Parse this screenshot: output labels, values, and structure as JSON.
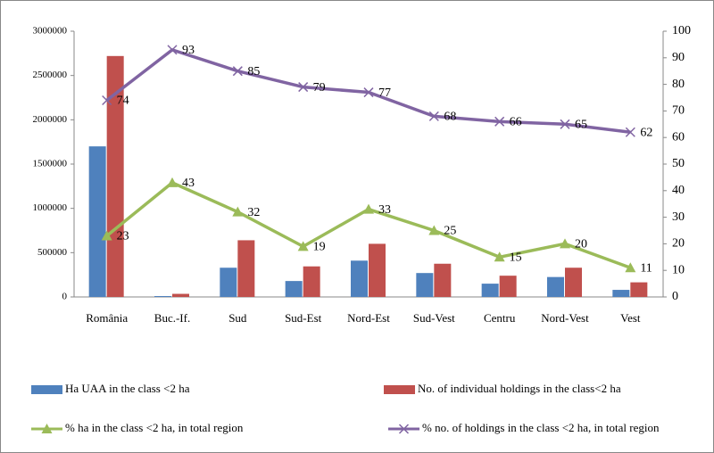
{
  "chart_data": {
    "type": "bar",
    "categories": [
      "România",
      "Buc.-If.",
      "Sud",
      "Sud-Est",
      "Nord-Est",
      "Sud-Vest",
      "Centru",
      "Nord-Vest",
      "Vest"
    ],
    "series": [
      {
        "name": "Ha UAA in the class <2 ha",
        "type": "bar",
        "color": "#4f81bd",
        "values": [
          1700000,
          10000,
          330000,
          180000,
          410000,
          270000,
          150000,
          225000,
          80000
        ]
      },
      {
        "name": "No. of individual holdings in the class<2 ha",
        "type": "bar",
        "color": "#c0504d",
        "values": [
          2720000,
          35000,
          640000,
          345000,
          600000,
          375000,
          240000,
          330000,
          165000
        ]
      },
      {
        "name": "% ha in the class <2 ha, in total region",
        "type": "line",
        "axis": "y2",
        "marker": "triangle",
        "color": "#9bbb59",
        "values": [
          23,
          43,
          32,
          19,
          33,
          25,
          15,
          20,
          11
        ]
      },
      {
        "name": "% no. of holdings in the class <2 ha, in total region",
        "type": "line",
        "axis": "y2",
        "marker": "x",
        "color": "#8064a2",
        "values": [
          74,
          93,
          85,
          79,
          77,
          68,
          66,
          65,
          62
        ]
      }
    ],
    "ylim": [
      0,
      3000000
    ],
    "yticks": [
      0,
      500000,
      1000000,
      1500000,
      2000000,
      2500000,
      3000000
    ],
    "y2lim": [
      0,
      100
    ],
    "y2ticks": [
      0,
      10,
      20,
      30,
      40,
      50,
      60,
      70,
      80,
      90,
      100
    ],
    "grid": false,
    "legend": "bottom"
  }
}
